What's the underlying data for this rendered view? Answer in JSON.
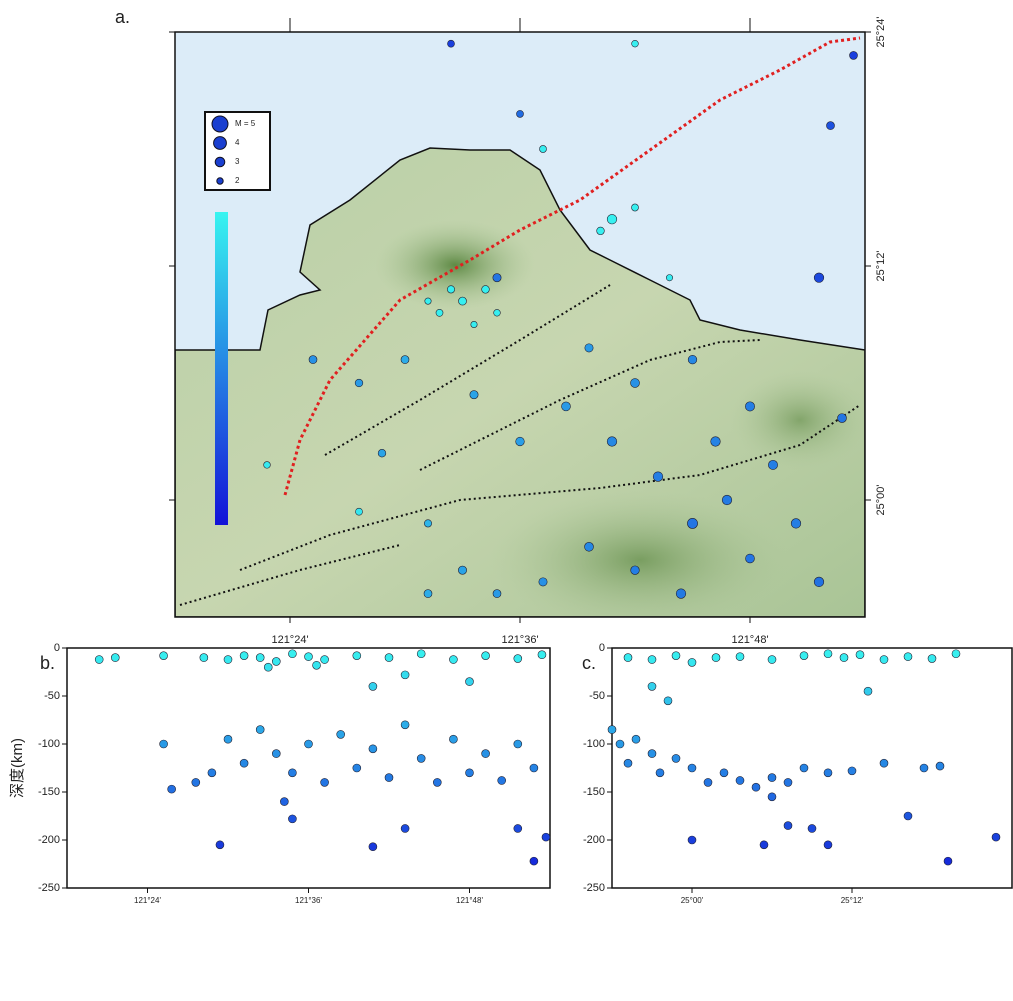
{
  "chart_data": [
    {
      "type": "map",
      "label": "a.",
      "xlim": [
        121.3,
        121.9
      ],
      "ylim": [
        24.9,
        25.4
      ],
      "xticks": [
        {
          "value": 121.4,
          "label": "121°24'"
        },
        {
          "value": 121.6,
          "label": "121°36'"
        },
        {
          "value": 121.8,
          "label": "121°48'"
        }
      ],
      "yticks": [
        {
          "value": 25.0,
          "label": "25°00'"
        },
        {
          "value": 25.2,
          "label": "25°12'"
        },
        {
          "value": 25.4,
          "label": "25°24'"
        }
      ],
      "clim": [
        0,
        250
      ],
      "colors": [
        "#38f4f0",
        "#1212d8"
      ],
      "legend": {
        "magnitudes": [
          5,
          4,
          3,
          2
        ],
        "labels": [
          "M = 5",
          "4",
          "3",
          "2"
        ]
      },
      "x": [
        121.55,
        121.53,
        121.57,
        121.56,
        121.54,
        121.58,
        121.52,
        121.58,
        121.68,
        121.67,
        121.7,
        121.54,
        121.89,
        121.87,
        121.86,
        121.73,
        121.68,
        121.72,
        121.75,
        121.78,
        121.8,
        121.84,
        121.86,
        121.7,
        121.66,
        121.62,
        121.58,
        121.74,
        121.82,
        121.77,
        121.64,
        121.6,
        121.56,
        121.5,
        121.46,
        121.42,
        121.48,
        121.52,
        121.7,
        121.75,
        121.66,
        121.88,
        121.8,
        121.55,
        121.52,
        121.46,
        121.38,
        121.62,
        121.6,
        121.7
      ],
      "y": [
        25.17,
        25.16,
        25.18,
        25.15,
        25.18,
        25.16,
        25.17,
        25.19,
        25.24,
        25.23,
        25.25,
        25.39,
        25.38,
        25.32,
        25.19,
        25.19,
        25.05,
        25.02,
        24.98,
        25.0,
        24.95,
        24.98,
        24.93,
        24.94,
        24.96,
        24.93,
        24.92,
        24.92,
        25.03,
        25.05,
        25.08,
        25.05,
        25.09,
        25.12,
        25.1,
        25.12,
        25.04,
        24.98,
        25.1,
        25.12,
        25.13,
        25.07,
        25.08,
        24.94,
        24.92,
        24.99,
        25.03,
        25.3,
        25.33,
        25.39
      ],
      "depth": [
        5,
        6,
        4,
        8,
        5,
        7,
        5,
        140,
        4,
        5,
        6,
        200,
        200,
        180,
        190,
        10,
        120,
        130,
        140,
        135,
        140,
        130,
        145,
        130,
        120,
        110,
        100,
        135,
        130,
        125,
        100,
        95,
        90,
        80,
        100,
        110,
        90,
        70,
        110,
        120,
        100,
        140,
        130,
        90,
        80,
        15,
        12,
        8,
        150,
        5
      ],
      "magnitude": [
        2.5,
        2.2,
        2.4,
        2.0,
        2.3,
        2.1,
        2.0,
        2.6,
        3.0,
        2.4,
        2.2,
        2.2,
        2.5,
        2.5,
        3.0,
        2.0,
        3.0,
        3.0,
        3.2,
        3.0,
        2.8,
        3.0,
        3.0,
        2.7,
        2.8,
        2.6,
        2.5,
        3.0,
        2.9,
        3.0,
        2.8,
        2.7,
        2.6,
        2.5,
        2.4,
        2.5,
        2.4,
        2.3,
        2.8,
        2.7,
        2.6,
        2.8,
        2.9,
        2.6,
        2.5,
        2.2,
        2.1,
        2.2,
        2.2,
        2.1
      ]
    },
    {
      "type": "scatter",
      "label": "b.",
      "y_label": "深度(km)",
      "xlim": [
        121.3,
        121.9
      ],
      "ylim": [
        -250,
        0
      ],
      "xticks": [
        {
          "value": 121.4,
          "label": "121°24'"
        },
        {
          "value": 121.6,
          "label": "121°36'"
        },
        {
          "value": 121.8,
          "label": "121°48'"
        }
      ],
      "yticks": [
        0,
        -50,
        -100,
        -150,
        -200,
        -250
      ],
      "clim": [
        0,
        -250
      ],
      "colors": [
        "#38f4f0",
        "#1212d8"
      ],
      "x": [
        121.34,
        121.36,
        121.42,
        121.47,
        121.5,
        121.52,
        121.54,
        121.56,
        121.58,
        121.6,
        121.62,
        121.66,
        121.7,
        121.74,
        121.78,
        121.82,
        121.86,
        121.89,
        121.55,
        121.61,
        121.72,
        121.68,
        121.8,
        121.42,
        121.43,
        121.46,
        121.48,
        121.5,
        121.52,
        121.54,
        121.56,
        121.58,
        121.6,
        121.62,
        121.64,
        121.66,
        121.68,
        121.7,
        121.72,
        121.74,
        121.76,
        121.78,
        121.8,
        121.82,
        121.84,
        121.86,
        121.88,
        121.57,
        121.58,
        121.49,
        121.68,
        121.72,
        121.86,
        121.88,
        121.895
      ],
      "y": [
        -12,
        -10,
        -8,
        -10,
        -12,
        -8,
        -10,
        -14,
        -6,
        -9,
        -12,
        -8,
        -10,
        -6,
        -12,
        -8,
        -11,
        -7,
        -20,
        -18,
        -28,
        -40,
        -35,
        -100,
        -147,
        -140,
        -130,
        -95,
        -120,
        -85,
        -110,
        -130,
        -100,
        -140,
        -90,
        -125,
        -105,
        -135,
        -80,
        -115,
        -140,
        -95,
        -130,
        -110,
        -138,
        -100,
        -125,
        -160,
        -178,
        -205,
        -207,
        -188,
        -188,
        -222,
        -197
      ]
    },
    {
      "type": "scatter",
      "label": "c.",
      "xlim": [
        24.9,
        25.4
      ],
      "ylim": [
        -250,
        0
      ],
      "xticks": [
        {
          "value": 25.0,
          "label": "25°00'"
        },
        {
          "value": 25.2,
          "label": "25°12'"
        }
      ],
      "yticks": [
        0,
        -50,
        -100,
        -150,
        -200,
        -250
      ],
      "clim": [
        0,
        -250
      ],
      "colors": [
        "#38f4f0",
        "#1212d8"
      ],
      "x": [
        24.92,
        24.95,
        24.98,
        25.0,
        25.03,
        25.06,
        25.1,
        25.14,
        25.17,
        25.19,
        25.21,
        25.24,
        25.27,
        25.3,
        25.33,
        24.95,
        24.97,
        25.22,
        24.9,
        24.91,
        24.92,
        24.93,
        24.95,
        24.96,
        24.98,
        25.0,
        25.02,
        25.04,
        25.06,
        25.08,
        25.1,
        25.12,
        25.14,
        25.17,
        25.2,
        25.24,
        25.29,
        25.31,
        25.12,
        25.15,
        25.09,
        25.17,
        25.27,
        25.32,
        25.38,
        25.0,
        25.1
      ],
      "y": [
        -10,
        -12,
        -8,
        -15,
        -10,
        -9,
        -12,
        -8,
        -6,
        -10,
        -7,
        -12,
        -9,
        -11,
        -6,
        -40,
        -55,
        -45,
        -85,
        -100,
        -120,
        -95,
        -110,
        -130,
        -115,
        -125,
        -140,
        -130,
        -138,
        -145,
        -135,
        -140,
        -125,
        -130,
        -128,
        -120,
        -125,
        -123,
        -185,
        -188,
        -205,
        -205,
        -175,
        -222,
        -197,
        -200,
        -155
      ]
    }
  ]
}
